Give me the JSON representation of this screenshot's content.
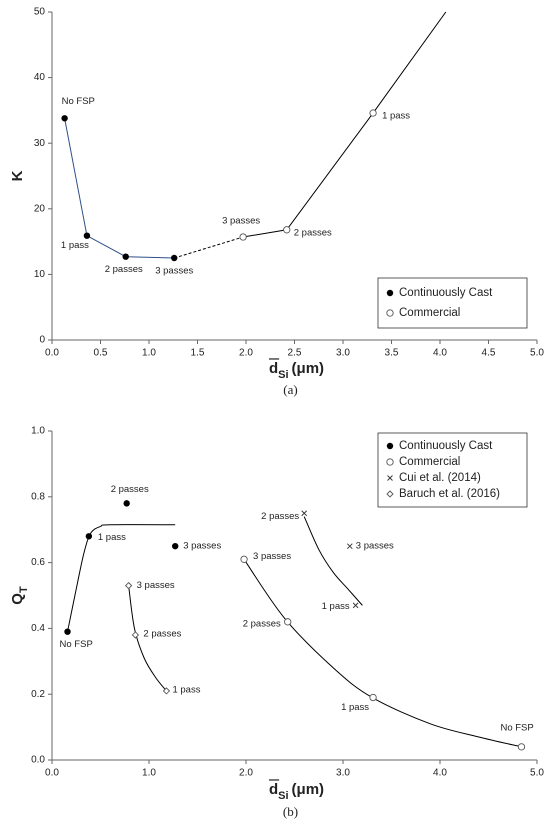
{
  "chart_data": [
    {
      "type": "scatter",
      "caption": "(a)",
      "ylabel": "K",
      "xlabel": {
        "symbol": "d",
        "subscript": "Si",
        "unit": "(μm)"
      },
      "xlim": [
        0,
        5
      ],
      "ylim": [
        0,
        50
      ],
      "xticks": [
        {
          "value": 0,
          "label": "0.0"
        },
        0.5,
        {
          "value": 1,
          "label": "1.0"
        },
        1.5,
        {
          "value": 2,
          "label": "2.0"
        },
        2.5,
        {
          "value": 3,
          "label": "3.0"
        },
        3.5,
        {
          "value": 4,
          "label": "4.0"
        },
        4.5,
        {
          "value": 5,
          "label": "5.0"
        }
      ],
      "yticks": [
        0,
        10,
        20,
        30,
        40,
        50
      ],
      "legend": "bottom-right",
      "series": [
        {
          "name": "Continuously Cast",
          "marker": "filled-circle",
          "color": "#000000",
          "x": [
            0.13,
            0.36,
            0.76,
            1.26
          ],
          "values": [
            33.8,
            15.9,
            12.7,
            12.5
          ],
          "point_labels": [
            "No FSP",
            "1 pass",
            "2 passes",
            "3 passes"
          ]
        },
        {
          "name": "Commercial",
          "marker": "open-circle",
          "color": "#000000",
          "x": [
            1.97,
            2.42,
            3.31
          ],
          "values": [
            15.7,
            16.8,
            34.6
          ],
          "point_labels": [
            "3 passes",
            "2 passes",
            "1 pass"
          ]
        }
      ],
      "lines": [
        {
          "x": [
            0.13,
            0.36,
            0.76,
            1.26
          ],
          "y": [
            33.8,
            15.9,
            12.7,
            12.5
          ],
          "color": "#2e4f8a",
          "dashed": false
        },
        {
          "x": [
            1.26,
            1.97
          ],
          "y": [
            12.5,
            15.7
          ],
          "color": "#000000",
          "dashed": true
        },
        {
          "x": [
            1.97,
            2.42,
            3.31,
            4.06
          ],
          "y": [
            15.7,
            16.8,
            34.6,
            50
          ],
          "color": "#000000",
          "dashed": false
        }
      ]
    },
    {
      "type": "scatter",
      "caption": "(b)",
      "ylabel": {
        "symbol": "Q",
        "subscript": "T"
      },
      "xlabel": {
        "symbol": "d",
        "subscript": "Si",
        "unit": "(μm)"
      },
      "xlim": [
        0,
        5
      ],
      "ylim": [
        0,
        1
      ],
      "xticks": [
        {
          "value": 0,
          "label": "0.0"
        },
        {
          "value": 1,
          "label": "1.0"
        },
        {
          "value": 2,
          "label": "2.0"
        },
        {
          "value": 3,
          "label": "3.0"
        },
        {
          "value": 4,
          "label": "4.0"
        },
        {
          "value": 5,
          "label": "5.0"
        }
      ],
      "yticks": [
        {
          "value": 0,
          "label": "0.0"
        },
        0.2,
        0.4,
        0.6,
        0.8,
        {
          "value": 1,
          "label": "1.0"
        }
      ],
      "legend": "top-right",
      "series": [
        {
          "name": "Continuously Cast",
          "marker": "filled-circle",
          "color": "#000000",
          "x": [
            0.16,
            0.38,
            0.77,
            1.27
          ],
          "values": [
            0.39,
            0.68,
            0.78,
            0.65
          ],
          "point_labels": [
            "No FSP",
            "1 pass",
            "2 passes",
            "3 passes"
          ]
        },
        {
          "name": "Commercial",
          "marker": "open-circle",
          "color": "#000000",
          "x": [
            1.98,
            2.43,
            3.31,
            4.84
          ],
          "values": [
            0.61,
            0.42,
            0.19,
            0.04
          ],
          "point_labels": [
            "3 passes",
            "2 passes",
            "1 pass",
            "No FSP"
          ]
        },
        {
          "name": "Cui et al. (2014)",
          "marker": "cross",
          "color": "#000000",
          "x": [
            2.6,
            3.07,
            3.13
          ],
          "values": [
            0.75,
            0.65,
            0.47
          ],
          "point_labels": [
            "2 passes",
            "3 passes",
            "1 pass"
          ]
        },
        {
          "name": "Baruch et al. (2016)",
          "marker": "open-diamond",
          "color": "#000000",
          "x": [
            0.79,
            0.86,
            1.18
          ],
          "values": [
            0.53,
            0.38,
            0.21
          ],
          "point_labels": [
            "3 passes",
            "2 passes",
            "1 pass"
          ]
        }
      ],
      "lines": [
        {
          "x": [
            0.16,
            0.25,
            0.33,
            0.4,
            0.5,
            0.6,
            1.27
          ],
          "y": [
            0.39,
            0.52,
            0.63,
            0.69,
            0.71,
            0.715,
            0.715
          ],
          "color": "#000000",
          "dashed": false
        },
        {
          "x": [
            1.98,
            2.4,
            2.9,
            3.3,
            3.9,
            4.4,
            4.84
          ],
          "y": [
            0.61,
            0.43,
            0.28,
            0.19,
            0.11,
            0.07,
            0.04
          ],
          "color": "#000000",
          "dashed": false
        },
        {
          "x": [
            2.6,
            2.75,
            2.9,
            3.05,
            3.2
          ],
          "y": [
            0.74,
            0.64,
            0.57,
            0.52,
            0.47
          ],
          "color": "#000000",
          "dashed": false
        },
        {
          "x": [
            0.79,
            0.85,
            0.95,
            1.07,
            1.18
          ],
          "y": [
            0.53,
            0.4,
            0.31,
            0.25,
            0.21
          ],
          "color": "#000000",
          "dashed": false
        }
      ]
    }
  ]
}
